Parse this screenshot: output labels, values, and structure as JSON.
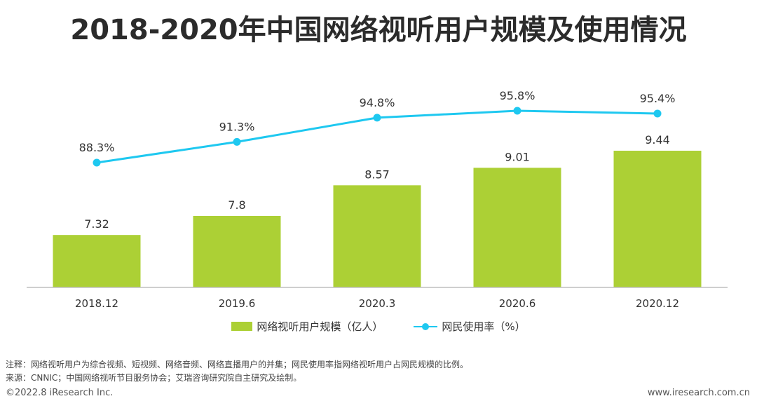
{
  "title": "2018-2020年中国网络视听用户规模及使用情况",
  "chart_data": {
    "type": "bar+line",
    "categories": [
      "2018.12",
      "2019.6",
      "2020.3",
      "2020.6",
      "2020.12"
    ],
    "series": [
      {
        "name": "网络视听用户规模（亿人）",
        "type": "bar",
        "values": [
          7.32,
          7.8,
          8.57,
          9.01,
          9.44
        ],
        "labels": [
          "7.32",
          "7.8",
          "8.57",
          "9.01",
          "9.44"
        ],
        "color": "#acd035"
      },
      {
        "name": "网民使用率（%）",
        "type": "line",
        "values": [
          88.3,
          91.3,
          94.8,
          95.8,
          95.4
        ],
        "labels": [
          "88.3%",
          "91.3%",
          "94.8%",
          "95.8%",
          "95.4%"
        ],
        "color": "#1ec8f0"
      }
    ],
    "bar_ylim": [
      6,
      10
    ],
    "line_ylim": [
      80,
      100
    ],
    "legend_position": "bottom"
  },
  "notes": {
    "note": "注释：网络视听用户为综合视频、短视频、网络音频、网络直播用户的并集；网民使用率指网络视听用户占网民规模的比例。",
    "source": "来源：CNNIC；中国网络视听节目服务协会；艾瑞咨询研究院自主研究及绘制。"
  },
  "footer": {
    "copyright": "©2022.8 iResearch Inc.",
    "website": "www.iresearch.com.cn"
  }
}
